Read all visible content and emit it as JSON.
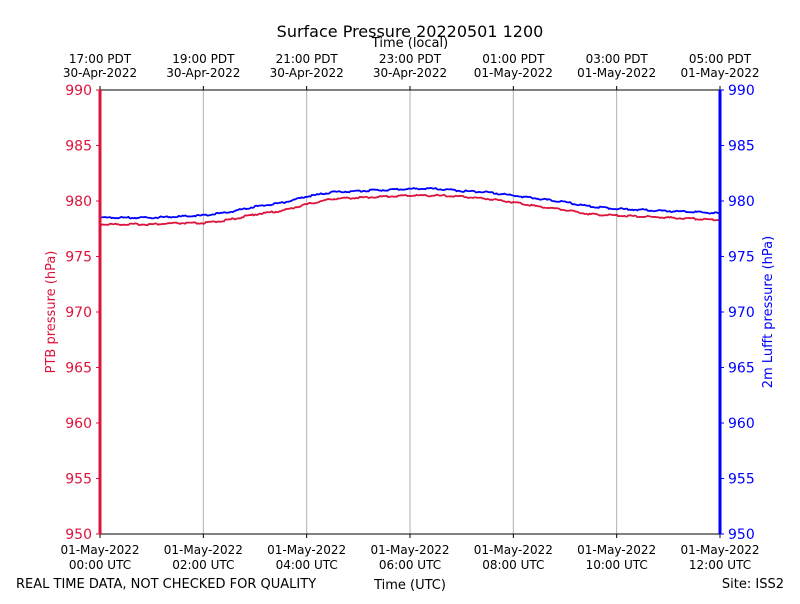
{
  "chart_data": {
    "type": "line",
    "title": "Surface Pressure 20220501 1200",
    "xlabel_top": "Time (local)",
    "xlabel_bottom": "Time (UTC)",
    "ylabel_left": "PTB pressure (hPa)",
    "ylabel_right": "2m Lufft pressure (hPa)",
    "ylim": [
      950,
      990
    ],
    "yticks": [
      950,
      955,
      960,
      965,
      970,
      975,
      980,
      985,
      990
    ],
    "x_hours_range": [
      0,
      12
    ],
    "grid_vertical": true,
    "bottom_ticks": [
      {
        "hour": 0,
        "line1": "01-May-2022",
        "line2": "00:00 UTC"
      },
      {
        "hour": 2,
        "line1": "01-May-2022",
        "line2": "02:00 UTC"
      },
      {
        "hour": 4,
        "line1": "01-May-2022",
        "line2": "04:00 UTC"
      },
      {
        "hour": 6,
        "line1": "01-May-2022",
        "line2": "06:00 UTC"
      },
      {
        "hour": 8,
        "line1": "01-May-2022",
        "line2": "08:00 UTC"
      },
      {
        "hour": 10,
        "line1": "01-May-2022",
        "line2": "10:00 UTC"
      },
      {
        "hour": 12,
        "line1": "01-May-2022",
        "line2": "12:00 UTC"
      }
    ],
    "top_ticks": [
      {
        "hour": 0,
        "line1": "17:00 PDT",
        "line2": "30-Apr-2022"
      },
      {
        "hour": 2,
        "line1": "19:00 PDT",
        "line2": "30-Apr-2022"
      },
      {
        "hour": 4,
        "line1": "21:00 PDT",
        "line2": "30-Apr-2022"
      },
      {
        "hour": 6,
        "line1": "23:00 PDT",
        "line2": "30-Apr-2022"
      },
      {
        "hour": 8,
        "line1": "01:00 PDT",
        "line2": "01-May-2022"
      },
      {
        "hour": 10,
        "line1": "03:00 PDT",
        "line2": "01-May-2022"
      },
      {
        "hour": 12,
        "line1": "05:00 PDT",
        "line2": "01-May-2022"
      }
    ],
    "series": [
      {
        "axis": "left",
        "color": "#dc143c",
        "x": [
          0,
          0.5,
          1,
          1.5,
          2,
          2.5,
          3,
          3.5,
          4,
          4.5,
          5,
          5.5,
          6,
          6.5,
          7,
          7.5,
          8,
          8.5,
          9,
          9.5,
          10,
          10.5,
          11,
          11.5,
          12
        ],
        "values": [
          977.9,
          977.9,
          977.9,
          978.0,
          978.0,
          978.3,
          978.8,
          979.1,
          979.7,
          980.2,
          980.3,
          980.4,
          980.5,
          980.5,
          980.4,
          980.2,
          979.9,
          979.5,
          979.2,
          978.8,
          978.7,
          978.6,
          978.5,
          978.4,
          978.3
        ]
      },
      {
        "axis": "right",
        "color": "#0000ff",
        "x": [
          0,
          0.5,
          1,
          1.5,
          2,
          2.5,
          3,
          3.5,
          4,
          4.5,
          5,
          5.5,
          6,
          6.5,
          7,
          7.5,
          8,
          8.5,
          9,
          9.5,
          10,
          10.5,
          11,
          11.5,
          12
        ],
        "values": [
          978.5,
          978.5,
          978.5,
          978.6,
          978.7,
          979.0,
          979.5,
          979.8,
          980.4,
          980.8,
          980.9,
          981.0,
          981.1,
          981.1,
          980.9,
          980.8,
          980.5,
          980.2,
          979.9,
          979.5,
          979.3,
          979.2,
          979.1,
          979.0,
          978.9
        ]
      }
    ]
  },
  "footer": {
    "disclaimer": "REAL TIME DATA, NOT CHECKED FOR QUALITY",
    "site": "Site: ISS2"
  }
}
